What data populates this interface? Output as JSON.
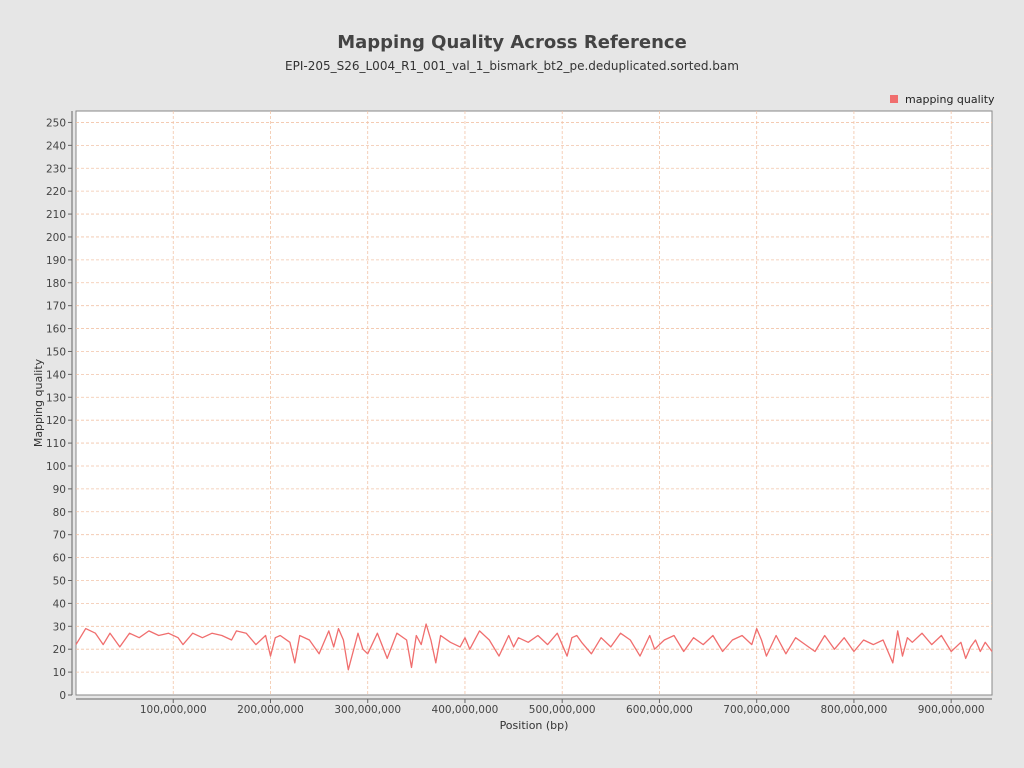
{
  "chart_data": {
    "type": "line",
    "title": "Mapping Quality Across Reference",
    "subtitle": "EPI-205_S26_L004_R1_001_val_1_bismark_bt2_pe.deduplicated.sorted.bam",
    "xlabel": "Position (bp)",
    "ylabel": "Mapping quality",
    "xlim": [
      0,
      942000000
    ],
    "ylim": [
      0,
      255
    ],
    "xticks": [
      100000000,
      200000000,
      300000000,
      400000000,
      500000000,
      600000000,
      700000000,
      800000000,
      900000000
    ],
    "xtick_labels": [
      "100,000,000",
      "200,000,000",
      "300,000,000",
      "400,000,000",
      "500,000,000",
      "600,000,000",
      "700,000,000",
      "800,000,000",
      "900,000,000"
    ],
    "yticks": [
      0,
      10,
      20,
      30,
      40,
      50,
      60,
      70,
      80,
      90,
      100,
      110,
      120,
      130,
      140,
      150,
      160,
      170,
      180,
      190,
      200,
      210,
      220,
      230,
      240,
      250
    ],
    "ytick_labels": [
      "0",
      "10",
      "20",
      "30",
      "40",
      "50",
      "60",
      "70",
      "80",
      "90",
      "100",
      "110",
      "120",
      "130",
      "140",
      "150",
      "160",
      "170",
      "180",
      "190",
      "200",
      "210",
      "220",
      "230",
      "240",
      "250"
    ],
    "grid": true,
    "legend_position": "top-right",
    "series": [
      {
        "name": "mapping quality",
        "color": "#f06e6e",
        "x": [
          0,
          10000000,
          20000000,
          28000000,
          35000000,
          45000000,
          55000000,
          65000000,
          75000000,
          85000000,
          95000000,
          105000000,
          110000000,
          120000000,
          130000000,
          140000000,
          150000000,
          160000000,
          165000000,
          175000000,
          185000000,
          195000000,
          200000000,
          205000000,
          210000000,
          220000000,
          225000000,
          230000000,
          240000000,
          250000000,
          260000000,
          265000000,
          270000000,
          275000000,
          280000000,
          290000000,
          295000000,
          300000000,
          310000000,
          320000000,
          330000000,
          340000000,
          345000000,
          350000000,
          355000000,
          360000000,
          365000000,
          370000000,
          375000000,
          385000000,
          395000000,
          400000000,
          405000000,
          415000000,
          425000000,
          435000000,
          445000000,
          450000000,
          455000000,
          465000000,
          475000000,
          485000000,
          495000000,
          505000000,
          510000000,
          515000000,
          520000000,
          530000000,
          540000000,
          550000000,
          560000000,
          570000000,
          580000000,
          590000000,
          595000000,
          605000000,
          615000000,
          625000000,
          635000000,
          645000000,
          655000000,
          665000000,
          675000000,
          685000000,
          695000000,
          700000000,
          705000000,
          710000000,
          720000000,
          730000000,
          740000000,
          750000000,
          760000000,
          770000000,
          780000000,
          790000000,
          800000000,
          810000000,
          820000000,
          830000000,
          840000000,
          845000000,
          850000000,
          855000000,
          860000000,
          870000000,
          880000000,
          890000000,
          900000000,
          910000000,
          915000000,
          920000000,
          925000000,
          930000000,
          935000000,
          942000000
        ],
        "y": [
          22,
          29,
          27,
          22,
          27,
          21,
          27,
          25,
          28,
          26,
          27,
          25,
          22,
          27,
          25,
          27,
          26,
          24,
          28,
          27,
          22,
          26,
          17,
          25,
          26,
          23,
          14,
          26,
          24,
          18,
          28,
          21,
          29,
          24,
          11,
          27,
          20,
          18,
          27,
          16,
          27,
          24,
          12,
          26,
          22,
          31,
          24,
          14,
          26,
          23,
          21,
          25,
          20,
          28,
          24,
          17,
          26,
          21,
          25,
          23,
          26,
          22,
          27,
          17,
          25,
          26,
          23,
          18,
          25,
          21,
          27,
          24,
          17,
          26,
          20,
          24,
          26,
          19,
          25,
          22,
          26,
          19,
          24,
          26,
          22,
          29,
          24,
          17,
          26,
          18,
          25,
          22,
          19,
          26,
          20,
          25,
          19,
          24,
          22,
          24,
          14,
          28,
          17,
          25,
          23,
          27,
          22,
          26,
          19,
          23,
          16,
          21,
          24,
          19,
          23,
          19
        ]
      }
    ]
  }
}
